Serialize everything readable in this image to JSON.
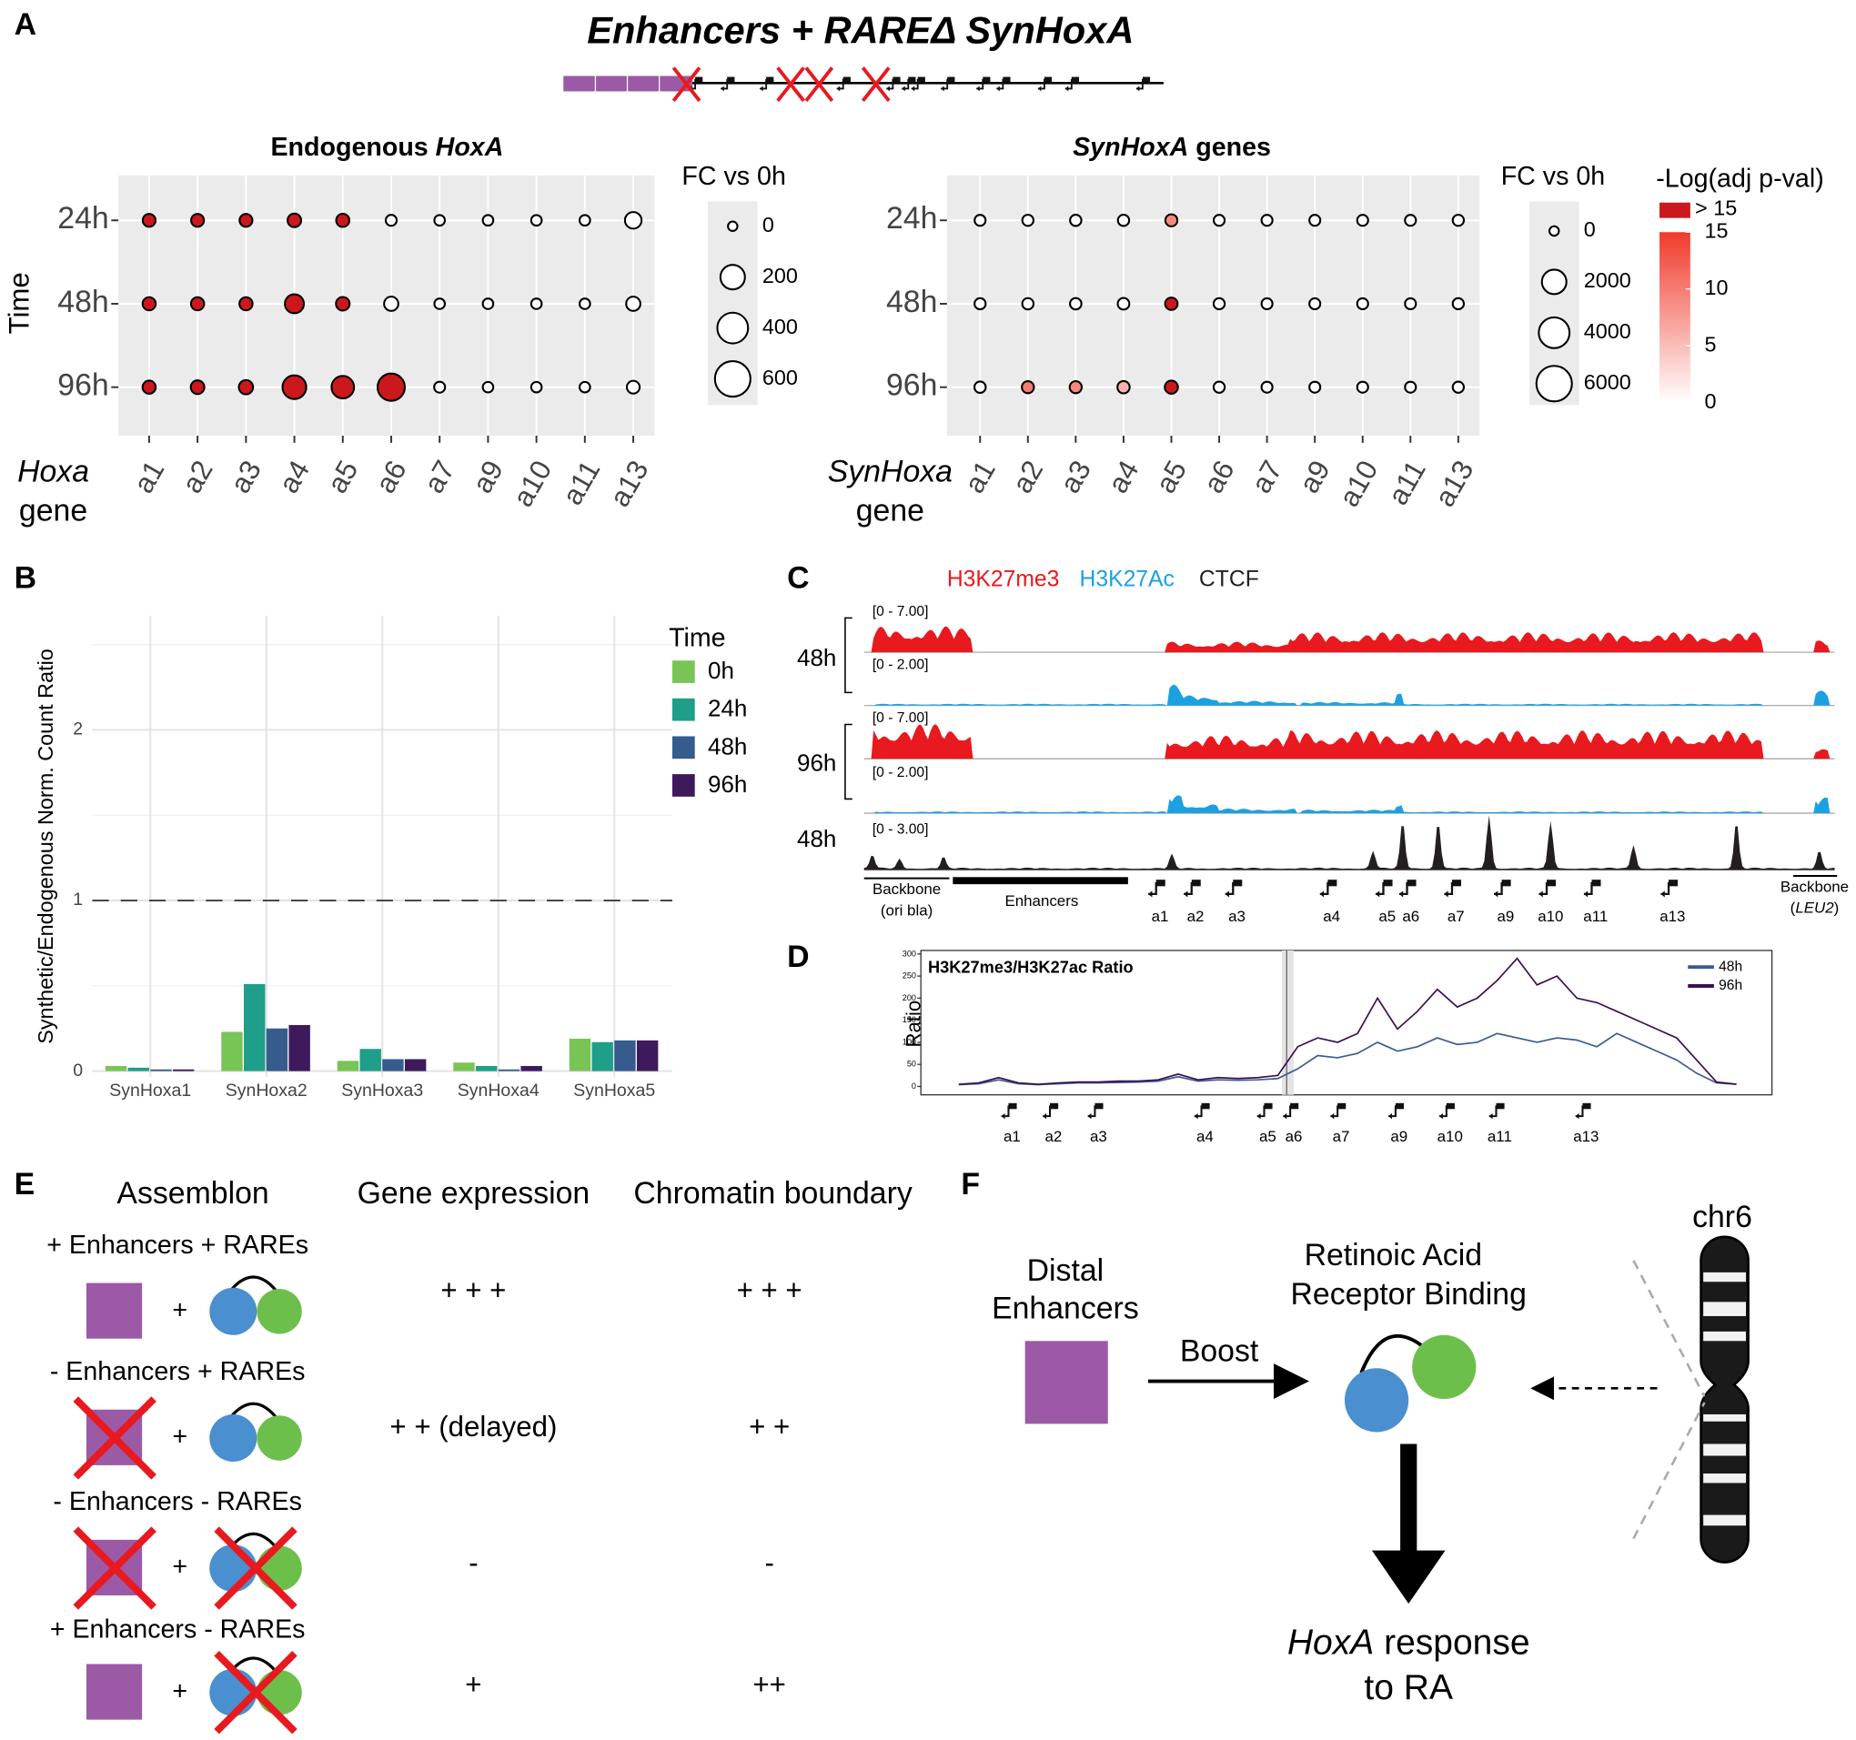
{
  "panel_labels": [
    "A",
    "B",
    "C",
    "D",
    "E",
    "F"
  ],
  "header": {
    "title": "Enhancers + RAREΔ SynHoxA"
  },
  "chart_data": [
    {
      "type": "dotplot",
      "title": [
        {
          "text": "Endogenous "
        },
        {
          "text": "HoxA",
          "italic": true
        }
      ],
      "y_label": "Time",
      "x_label": [
        [
          {
            "text": "Hoxa",
            "italic": true
          }
        ],
        [
          {
            "text": "gene"
          }
        ]
      ],
      "categories": [
        "a1",
        "a2",
        "a3",
        "a4",
        "a5",
        "a6",
        "a7",
        "a9",
        "a10",
        "a11",
        "a13"
      ],
      "rows": [
        "24h",
        "48h",
        "96h"
      ],
      "size_values": [
        [
          10,
          10,
          10,
          15,
          12,
          2,
          1,
          1,
          1,
          1,
          45
        ],
        [
          12,
          12,
          12,
          80,
          15,
          20,
          1,
          1,
          1,
          1,
          20
        ],
        [
          12,
          15,
          20,
          180,
          150,
          280,
          2,
          1,
          1,
          1,
          10
        ]
      ],
      "color_values": [
        [
          20,
          20,
          20,
          20,
          20,
          0,
          0,
          0,
          0,
          0,
          0
        ],
        [
          20,
          20,
          20,
          20,
          20,
          0,
          0,
          0,
          0,
          0,
          0
        ],
        [
          20,
          20,
          20,
          20,
          20,
          20,
          0,
          0,
          0,
          0,
          0
        ]
      ],
      "size_legend": {
        "title": "FC vs 0h",
        "ticks": [
          0,
          200,
          400,
          600
        ]
      },
      "color_scale": {
        "lim": [
          0,
          15
        ],
        "low": "#ffffff",
        "high": "#ef3b2c",
        "over": "#cb181d"
      }
    },
    {
      "type": "dotplot",
      "title": [
        {
          "text": "SynHoxA",
          "italic": true
        },
        {
          "text": " genes"
        }
      ],
      "x_label": [
        [
          {
            "text": "SynHoxa",
            "italic": true
          }
        ],
        [
          {
            "text": "gene"
          }
        ]
      ],
      "categories": [
        "a1",
        "a2",
        "a3",
        "a4",
        "a5",
        "a6",
        "a7",
        "a9",
        "a10",
        "a11",
        "a13"
      ],
      "rows": [
        "24h",
        "48h",
        "96h"
      ],
      "size_values": [
        [
          20,
          25,
          30,
          30,
          60,
          20,
          20,
          20,
          20,
          20,
          25
        ],
        [
          25,
          30,
          35,
          40,
          80,
          25,
          20,
          20,
          20,
          20,
          25
        ],
        [
          30,
          60,
          60,
          70,
          120,
          25,
          20,
          20,
          20,
          20,
          25
        ]
      ],
      "color_values": [
        [
          0,
          0,
          0,
          0,
          9,
          0,
          0,
          0,
          0,
          0,
          0
        ],
        [
          0,
          0,
          0,
          0,
          18,
          0,
          0,
          0,
          0,
          0,
          0
        ],
        [
          0,
          10,
          9,
          6,
          18,
          0,
          0,
          0,
          0,
          0,
          0
        ]
      ],
      "size_legend": {
        "title": "FC vs 0h",
        "ticks": [
          0,
          2000,
          4000,
          6000
        ]
      },
      "color_scale": {
        "lim": [
          0,
          15
        ],
        "low": "#ffffff",
        "high": "#ef3b2c",
        "over": "#cb181d"
      },
      "color_legend": {
        "title": "-Log(adj p-val)",
        "ticks": [
          0,
          5,
          10,
          15
        ],
        "over_label": "> 15"
      }
    },
    {
      "type": "bar",
      "y_label": "Synthetic/Endogenous Norm. Count Ratio",
      "categories": [
        "SynHoxa1",
        "SynHoxa2",
        "SynHoxa3",
        "SynHoxa4",
        "SynHoxa5"
      ],
      "series": [
        {
          "name": "0h",
          "color": "#78c556",
          "values": [
            0.03,
            0.23,
            0.06,
            0.05,
            0.19
          ]
        },
        {
          "name": "24h",
          "color": "#1f9e89",
          "values": [
            0.02,
            0.51,
            0.13,
            0.03,
            0.17
          ]
        },
        {
          "name": "48h",
          "color": "#365c8d",
          "values": [
            0.01,
            0.25,
            0.07,
            0.01,
            0.18
          ]
        },
        {
          "name": "96h",
          "color": "#3e1a5c",
          "values": [
            0.01,
            0.27,
            0.07,
            0.03,
            0.18
          ]
        }
      ],
      "ylim": [
        -0.035,
        2.67
      ],
      "yticks": [
        0,
        1,
        2
      ],
      "minor_yticks": [
        0.5,
        1.5,
        2.5
      ],
      "hline": 1,
      "legend_title": "Time",
      "grid": true
    },
    {
      "type": "line",
      "title": "H3K27me3/H3K27ac Ratio",
      "y_label": "Ratio",
      "ylim": [
        -19,
        308
      ],
      "yticks": [
        0,
        50,
        100,
        150,
        200,
        250,
        300
      ],
      "series": [
        {
          "name": "48h",
          "color": "#3a5a92",
          "values": [
            4,
            6,
            15,
            6,
            4,
            6,
            8,
            8,
            9,
            10,
            12,
            22,
            12,
            15,
            14,
            15,
            18,
            40,
            70,
            65,
            75,
            100,
            80,
            90,
            110,
            95,
            100,
            120,
            110,
            100,
            110,
            105,
            90,
            120,
            100,
            80,
            60,
            30,
            8,
            5
          ]
        },
        {
          "name": "96h",
          "color": "#3b0f50",
          "values": [
            5,
            8,
            20,
            8,
            5,
            8,
            10,
            10,
            12,
            12,
            15,
            28,
            15,
            20,
            18,
            20,
            25,
            90,
            110,
            100,
            120,
            200,
            130,
            170,
            220,
            180,
            200,
            240,
            290,
            230,
            250,
            200,
            190,
            170,
            150,
            130,
            110,
            60,
            10,
            5
          ]
        }
      ],
      "gene_labels": [
        "a1",
        "a2",
        "a3",
        "a4",
        "a5",
        "a6",
        "a7",
        "a9",
        "a10",
        "a11",
        "a13"
      ]
    }
  ],
  "tracks": {
    "legend": [
      {
        "text": "H3K27me3",
        "color": "#e8191f"
      },
      {
        "text": "H3K27Ac",
        "color": "#1ba1e2"
      },
      {
        "text": "CTCF",
        "color": "#231f20"
      }
    ],
    "ranges": [
      "[0 - 7.00]",
      "[0 - 2.00]",
      "[0 - 7.00]",
      "[0 - 2.00]",
      "[0 - 3.00]"
    ],
    "time_labels": [
      "48h",
      "96h",
      "48h"
    ],
    "backbone_left": [
      "Backbone",
      "(ori bla)"
    ],
    "enhancers": "Enhancers",
    "backbone_right": {
      "line1": "Backbone",
      "line2": [
        {
          "text": "("
        },
        {
          "text": "LEU2",
          "italic": true
        },
        {
          "text": ")"
        }
      ]
    },
    "gene_labels": [
      "a1",
      "a2",
      "a3",
      "a4",
      "a5",
      "a6",
      "a7",
      "a9",
      "a10",
      "a11",
      "a13"
    ]
  },
  "table": {
    "headers": [
      "Assemblon",
      "Gene expression",
      "Chromatin boundary"
    ],
    "joiner": "+",
    "rows": [
      {
        "label": "+ Enhancers + RAREs",
        "enhancers": true,
        "rares": true,
        "expression": "+ + +",
        "boundary": "+ + +"
      },
      {
        "label": "- Enhancers + RAREs",
        "enhancers": false,
        "rares": true,
        "expression": "+ + (delayed)",
        "boundary": "+ +"
      },
      {
        "label": "- Enhancers - RAREs",
        "enhancers": false,
        "rares": false,
        "expression": "-",
        "boundary": "-"
      },
      {
        "label": "+ Enhancers - RAREs",
        "enhancers": true,
        "rares": false,
        "expression": "+",
        "boundary": "++"
      }
    ]
  },
  "diagram": {
    "distal": [
      "Distal",
      "Enhancers"
    ],
    "boost": "Boost",
    "rar": [
      "Retinoic Acid",
      "Receptor Binding"
    ],
    "chromosome": "chr6",
    "response": [
      [
        {
          "text": "HoxA",
          "italic": true
        },
        {
          "text": " response"
        }
      ],
      [
        {
          "text": "to RA"
        }
      ]
    ]
  }
}
